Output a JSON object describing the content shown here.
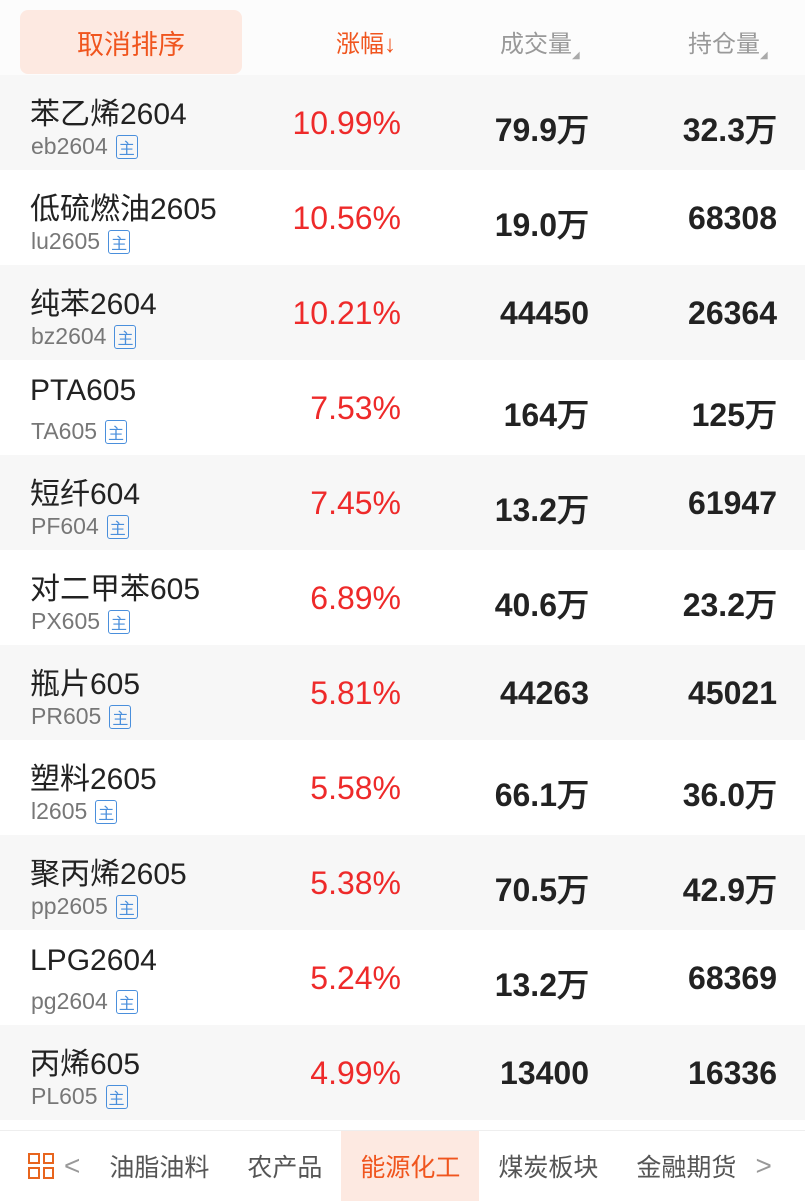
{
  "header": {
    "cancel_sort": "取消排序",
    "col_change": "涨幅↓",
    "col_volume": "成交量",
    "col_oi": "持仓量"
  },
  "badge_label": "主",
  "rows": [
    {
      "name": "苯乙烯2604",
      "code": "eb2604",
      "change": "10.99%",
      "volume": "79.9万",
      "oi": "32.3万"
    },
    {
      "name": "低硫燃油2605",
      "code": "lu2605",
      "change": "10.56%",
      "volume": "19.0万",
      "oi": "68308"
    },
    {
      "name": "纯苯2604",
      "code": "bz2604",
      "change": "10.21%",
      "volume": "44450",
      "oi": "26364"
    },
    {
      "name": "PTA605",
      "code": "TA605",
      "change": "7.53%",
      "volume": "164万",
      "oi": "125万"
    },
    {
      "name": "短纤604",
      "code": "PF604",
      "change": "7.45%",
      "volume": "13.2万",
      "oi": "61947"
    },
    {
      "name": "对二甲苯605",
      "code": "PX605",
      "change": "6.89%",
      "volume": "40.6万",
      "oi": "23.2万"
    },
    {
      "name": "瓶片605",
      "code": "PR605",
      "change": "5.81%",
      "volume": "44263",
      "oi": "45021"
    },
    {
      "name": "塑料2605",
      "code": "l2605",
      "change": "5.58%",
      "volume": "66.1万",
      "oi": "36.0万"
    },
    {
      "name": "聚丙烯2605",
      "code": "pp2605",
      "change": "5.38%",
      "volume": "70.5万",
      "oi": "42.9万"
    },
    {
      "name": "LPG2604",
      "code": "pg2604",
      "change": "5.24%",
      "volume": "13.2万",
      "oi": "68369"
    },
    {
      "name": "丙烯605",
      "code": "PL605",
      "change": "4.99%",
      "volume": "13400",
      "oi": "16336"
    }
  ],
  "tabs": [
    {
      "label": "油脂油料"
    },
    {
      "label": "农产品"
    },
    {
      "label": "能源化工",
      "active": true
    },
    {
      "label": "煤炭板块"
    },
    {
      "label": "金融期货"
    }
  ],
  "icons": {
    "menu": "grid-icon",
    "prev": "chevron-left-icon",
    "next": "chevron-right-icon"
  },
  "colors": {
    "accent": "#f0551e",
    "up": "#ee2a2a",
    "badge": "#4a8fdc"
  }
}
